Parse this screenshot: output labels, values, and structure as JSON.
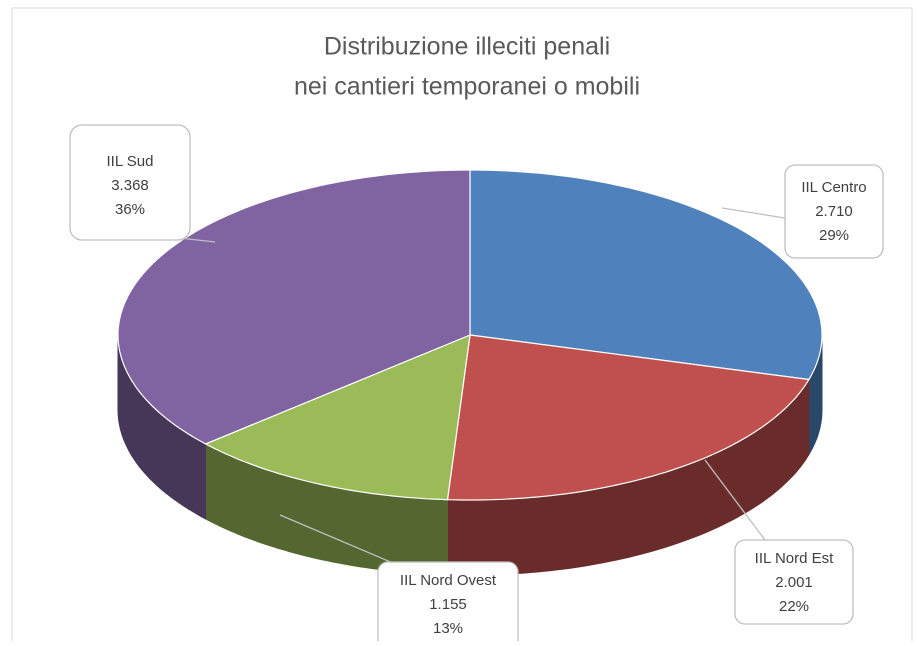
{
  "chart_data": {
    "type": "pie",
    "title": [
      "Distribuzione illeciti penali",
      "nei cantieri temporanei o mobili"
    ],
    "categories": [
      "IIL Centro",
      "IIL Nord Est",
      "IIL Nord Ovest",
      "IIL Sud"
    ],
    "values": [
      2710,
      2001,
      1155,
      3368
    ],
    "value_labels": [
      "2.710",
      "2.001",
      "1.155",
      "3.368"
    ],
    "percent_labels": [
      "29%",
      "22%",
      "13%",
      "36%"
    ],
    "colors": [
      "#4f81bd",
      "#c0504d",
      "#9bbb59",
      "#8064a2"
    ]
  }
}
